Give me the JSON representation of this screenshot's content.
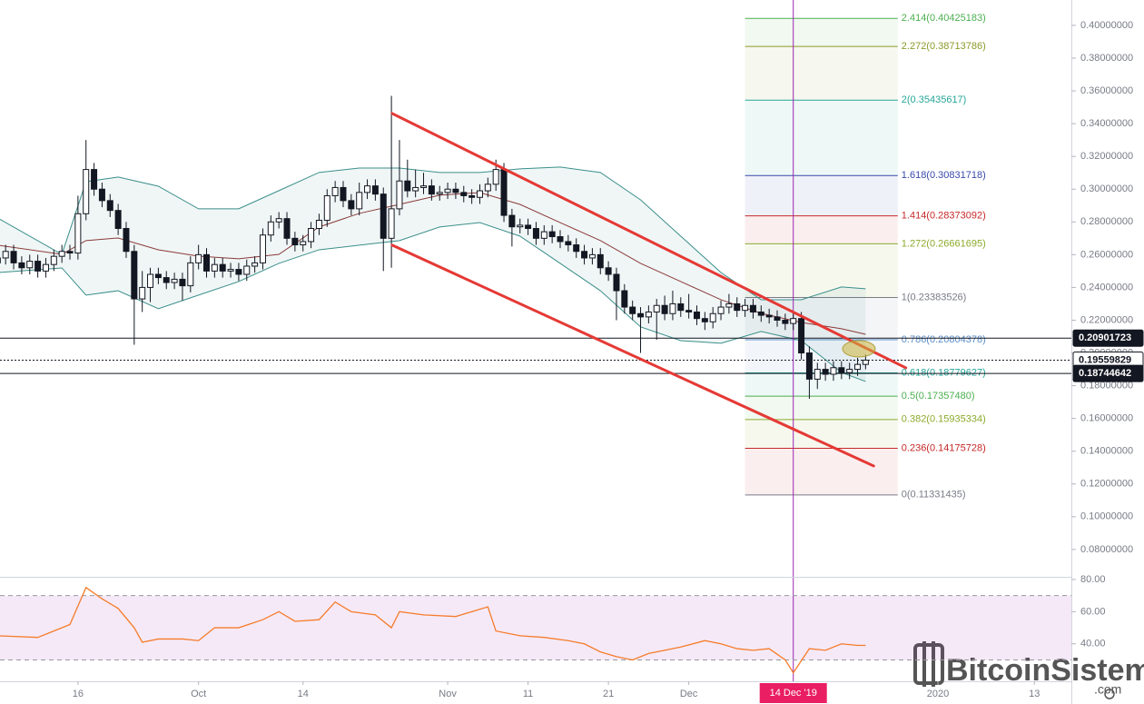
{
  "chart_data": {
    "type": "candlestick",
    "x": [
      5,
      6,
      7,
      8,
      9,
      10,
      11,
      12,
      13,
      14,
      15,
      16,
      17,
      18,
      19,
      20,
      21,
      22,
      23,
      24,
      25,
      26,
      27,
      28,
      29,
      30,
      31,
      32,
      33,
      34,
      35,
      36,
      37,
      38,
      39,
      40,
      41,
      42,
      43,
      44,
      45,
      46,
      47,
      48,
      49,
      50,
      51,
      52,
      53,
      54,
      55,
      56,
      57,
      58,
      59,
      60,
      61,
      62,
      63,
      64,
      65,
      66,
      67,
      68,
      69,
      70,
      71,
      72,
      73,
      74,
      75,
      76,
      77,
      78,
      79,
      80,
      81,
      82,
      83,
      84,
      85,
      86,
      87,
      88,
      89,
      90,
      91,
      92,
      93,
      94,
      95,
      96,
      97,
      98,
      99,
      100,
      101,
      102,
      103,
      104,
      105,
      106,
      107,
      108,
      109,
      110,
      111,
      112,
      113
    ],
    "open": [
      0.255,
      0.258,
      0.262,
      0.255,
      0.252,
      0.256,
      0.25,
      0.254,
      0.259,
      0.262,
      0.261,
      0.285,
      0.312,
      0.3,
      0.293,
      0.287,
      0.276,
      0.262,
      0.233,
      0.24,
      0.248,
      0.246,
      0.243,
      0.245,
      0.241,
      0.255,
      0.26,
      0.25,
      0.254,
      0.25,
      0.251,
      0.248,
      0.253,
      0.255,
      0.272,
      0.28,
      0.282,
      0.27,
      0.266,
      0.268,
      0.276,
      0.281,
      0.296,
      0.301,
      0.293,
      0.288,
      0.298,
      0.302,
      0.297,
      0.27,
      0.288,
      0.305,
      0.299,
      0.301,
      0.302,
      0.297,
      0.298,
      0.3,
      0.298,
      0.296,
      0.295,
      0.299,
      0.303,
      0.312,
      0.284,
      0.277,
      0.278,
      0.276,
      0.27,
      0.274,
      0.271,
      0.268,
      0.266,
      0.262,
      0.258,
      0.26,
      0.252,
      0.248,
      0.238,
      0.228,
      0.224,
      0.222,
      0.225,
      0.229,
      0.224,
      0.23,
      0.226,
      0.225,
      0.221,
      0.219,
      0.224,
      0.228,
      0.23,
      0.226,
      0.229,
      0.225,
      0.223,
      0.222,
      0.22,
      0.218,
      0.221,
      0.2,
      0.184,
      0.19,
      0.187,
      0.191,
      0.188,
      0.19,
      0.193
    ],
    "high": [
      0.262,
      0.266,
      0.266,
      0.259,
      0.26,
      0.26,
      0.258,
      0.263,
      0.266,
      0.266,
      0.296,
      0.33,
      0.316,
      0.304,
      0.297,
      0.291,
      0.28,
      0.266,
      0.25,
      0.252,
      0.252,
      0.25,
      0.249,
      0.249,
      0.259,
      0.266,
      0.264,
      0.258,
      0.258,
      0.255,
      0.255,
      0.257,
      0.259,
      0.276,
      0.284,
      0.286,
      0.286,
      0.274,
      0.272,
      0.28,
      0.285,
      0.3,
      0.305,
      0.305,
      0.297,
      0.304,
      0.306,
      0.306,
      0.301,
      0.357,
      0.33,
      0.318,
      0.312,
      0.31,
      0.306,
      0.302,
      0.304,
      0.304,
      0.302,
      0.3,
      0.303,
      0.307,
      0.318,
      0.316,
      0.288,
      0.282,
      0.282,
      0.28,
      0.278,
      0.278,
      0.275,
      0.272,
      0.27,
      0.266,
      0.264,
      0.264,
      0.256,
      0.252,
      0.242,
      0.232,
      0.228,
      0.229,
      0.233,
      0.235,
      0.238,
      0.234,
      0.236,
      0.229,
      0.225,
      0.228,
      0.232,
      0.236,
      0.234,
      0.233,
      0.233,
      0.229,
      0.227,
      0.226,
      0.224,
      0.225,
      0.225,
      0.204,
      0.194,
      0.194,
      0.195,
      0.195,
      0.194,
      0.197,
      0.199
    ],
    "low": [
      0.251,
      0.254,
      0.251,
      0.248,
      0.248,
      0.246,
      0.246,
      0.25,
      0.255,
      0.257,
      0.257,
      0.281,
      0.296,
      0.289,
      0.283,
      0.272,
      0.258,
      0.205,
      0.225,
      0.231,
      0.242,
      0.239,
      0.239,
      0.232,
      0.237,
      0.251,
      0.246,
      0.246,
      0.246,
      0.246,
      0.244,
      0.244,
      0.249,
      0.251,
      0.268,
      0.276,
      0.266,
      0.262,
      0.262,
      0.264,
      0.272,
      0.277,
      0.292,
      0.289,
      0.284,
      0.284,
      0.294,
      0.293,
      0.25,
      0.252,
      0.284,
      0.295,
      0.295,
      0.297,
      0.293,
      0.293,
      0.294,
      0.294,
      0.292,
      0.291,
      0.291,
      0.295,
      0.299,
      0.28,
      0.265,
      0.273,
      0.272,
      0.266,
      0.266,
      0.267,
      0.264,
      0.262,
      0.258,
      0.254,
      0.254,
      0.248,
      0.244,
      0.22,
      0.224,
      0.22,
      0.2,
      0.218,
      0.208,
      0.22,
      0.22,
      0.222,
      0.221,
      0.217,
      0.214,
      0.215,
      0.22,
      0.224,
      0.222,
      0.222,
      0.221,
      0.219,
      0.218,
      0.216,
      0.214,
      0.214,
      0.196,
      0.172,
      0.178,
      0.183,
      0.183,
      0.184,
      0.184,
      0.186,
      0.19
    ],
    "close": [
      0.258,
      0.262,
      0.255,
      0.252,
      0.256,
      0.25,
      0.254,
      0.259,
      0.262,
      0.261,
      0.285,
      0.312,
      0.3,
      0.293,
      0.287,
      0.276,
      0.262,
      0.233,
      0.24,
      0.248,
      0.246,
      0.243,
      0.245,
      0.241,
      0.255,
      0.26,
      0.25,
      0.254,
      0.25,
      0.251,
      0.248,
      0.253,
      0.255,
      0.272,
      0.28,
      0.282,
      0.27,
      0.266,
      0.268,
      0.276,
      0.281,
      0.296,
      0.301,
      0.293,
      0.288,
      0.298,
      0.302,
      0.297,
      0.27,
      0.288,
      0.305,
      0.299,
      0.301,
      0.302,
      0.297,
      0.298,
      0.3,
      0.298,
      0.296,
      0.295,
      0.299,
      0.303,
      0.312,
      0.284,
      0.277,
      0.278,
      0.276,
      0.27,
      0.274,
      0.271,
      0.268,
      0.266,
      0.262,
      0.258,
      0.26,
      0.252,
      0.248,
      0.238,
      0.228,
      0.224,
      0.222,
      0.225,
      0.229,
      0.224,
      0.23,
      0.226,
      0.225,
      0.221,
      0.219,
      0.224,
      0.228,
      0.23,
      0.226,
      0.229,
      0.225,
      0.223,
      0.222,
      0.22,
      0.218,
      0.221,
      0.2,
      0.184,
      0.19,
      0.187,
      0.191,
      0.188,
      0.19,
      0.193,
      0.1956
    ],
    "up_color": "#ffffff",
    "down_color": "#131722",
    "xlim": [
      5.3,
      138.6
    ],
    "ylim": [
      0.0633,
      0.4155
    ],
    "xticks": [
      {
        "value": 15,
        "label": "16"
      },
      {
        "value": 30,
        "label": "Oct"
      },
      {
        "value": 43,
        "label": "14"
      },
      {
        "value": 61,
        "label": "Nov"
      },
      {
        "value": 71,
        "label": "11"
      },
      {
        "value": 81,
        "label": "21"
      },
      {
        "value": 91,
        "label": "Dec"
      },
      {
        "value": 122,
        "label": "2020"
      },
      {
        "value": 134,
        "label": "13"
      }
    ],
    "yticks": [
      {
        "value": 0.08,
        "label": "0.08000000"
      },
      {
        "value": 0.1,
        "label": "0.10000000"
      },
      {
        "value": 0.12,
        "label": "0.12000000"
      },
      {
        "value": 0.14,
        "label": "0.14000000"
      },
      {
        "value": 0.16,
        "label": "0.16000000"
      },
      {
        "value": 0.18,
        "label": "0.18000000"
      },
      {
        "value": 0.2,
        "label": "0.20000000"
      },
      {
        "value": 0.22,
        "label": "0.22000000"
      },
      {
        "value": 0.24,
        "label": "0.24000000"
      },
      {
        "value": 0.26,
        "label": "0.26000000"
      },
      {
        "value": 0.28,
        "label": "0.28000000"
      },
      {
        "value": 0.3,
        "label": "0.30000000"
      },
      {
        "value": 0.32,
        "label": "0.32000000"
      },
      {
        "value": 0.34,
        "label": "0.34000000"
      },
      {
        "value": 0.36,
        "label": "0.36000000"
      },
      {
        "value": 0.38,
        "label": "0.38000000"
      },
      {
        "value": 0.4,
        "label": "0.40000000"
      }
    ],
    "bollinger": {
      "x": [
        5,
        13,
        16,
        20,
        25,
        30,
        35,
        40,
        45,
        50,
        55,
        60,
        65,
        70,
        75,
        80,
        85,
        90,
        95,
        100,
        105,
        110,
        113
      ],
      "upper": [
        0.2824,
        0.2602,
        0.3046,
        0.3074,
        0.3018,
        0.288,
        0.288,
        0.2991,
        0.3102,
        0.3129,
        0.3129,
        0.3102,
        0.3102,
        0.3124,
        0.3135,
        0.3102,
        0.2935,
        0.2713,
        0.2491,
        0.2325,
        0.2325,
        0.2403,
        0.2392
      ],
      "middle": [
        0.2658,
        0.2602,
        0.2686,
        0.2702,
        0.263,
        0.2591,
        0.2575,
        0.2602,
        0.2769,
        0.2852,
        0.2907,
        0.2963,
        0.2979,
        0.2907,
        0.2796,
        0.2686,
        0.2547,
        0.2436,
        0.2325,
        0.2242,
        0.2186,
        0.2148,
        0.2114
      ],
      "lower": [
        0.2491,
        0.2519,
        0.2353,
        0.238,
        0.227,
        0.2353,
        0.2436,
        0.2547,
        0.263,
        0.2658,
        0.2686,
        0.2769,
        0.2796,
        0.2713,
        0.2547,
        0.238,
        0.2159,
        0.2075,
        0.2059,
        0.2131,
        0.2075,
        0.1881,
        0.1826
      ],
      "band_color": "#3a8f8a",
      "middle_color": "#8b3a3a"
    },
    "trendlines": [
      {
        "x": [
          54.1,
          118.0
        ],
        "y": [
          0.3462,
          0.1909
        ],
        "color": "#e53935"
      },
      {
        "x": [
          54.1,
          114.0
        ],
        "y": [
          0.2658,
          0.131
        ],
        "color": "#e53935"
      }
    ],
    "fib_x": [
      98,
      117
    ],
    "fib_levels": [
      {
        "price": 0.40425183,
        "label": "2.414(0.40425183)",
        "color": "#4caf50"
      },
      {
        "price": 0.38713786,
        "label": "2.272(0.38713786)",
        "color": "#8c9a2a"
      },
      {
        "price": 0.35435617,
        "label": "2(0.35435617)",
        "color": "#26a69a"
      },
      {
        "price": 0.30831718,
        "label": "1.618(0.30831718)",
        "color": "#3949ab"
      },
      {
        "price": 0.28373092,
        "label": "1.414(0.28373092)",
        "color": "#c62828"
      },
      {
        "price": 0.26661695,
        "label": "1.272(0.26661695)",
        "color": "#8bab2c"
      },
      {
        "price": 0.23383526,
        "label": "1(0.23383526)",
        "color": "#787b86"
      },
      {
        "price": 0.20804378,
        "label": "0.786(0.20804378)",
        "color": "#5b8fc7"
      },
      {
        "price": 0.18779627,
        "label": "0.618(0.18779627)",
        "color": "#26a69a"
      },
      {
        "price": 0.1735748,
        "label": "0.5(0.17357480)",
        "color": "#4caf50"
      },
      {
        "price": 0.15935334,
        "label": "0.382(0.15935334)",
        "color": "#8bab2c"
      },
      {
        "price": 0.14175728,
        "label": "0.236(0.14175728)",
        "color": "#c62828"
      },
      {
        "price": 0.11331435,
        "label": "0(0.11331435)",
        "color": "#787b86"
      }
    ],
    "price_lines": [
      {
        "price": 0.20901723,
        "label": "0.20901723",
        "style": "solid"
      },
      {
        "price": 0.19559829,
        "label": "0.19559829",
        "style": "dotted"
      },
      {
        "price": 0.18744642,
        "label": "0.18744642",
        "style": "solid"
      }
    ],
    "cursor": {
      "x": 104,
      "label": "14 Dec '19",
      "color": "#9c27b0"
    },
    "rsi": {
      "x": [
        5,
        10,
        12,
        14,
        16,
        18,
        20,
        22,
        23,
        25,
        28,
        30,
        32,
        35,
        38,
        40,
        42,
        45,
        47,
        49,
        52,
        54,
        55,
        58,
        62,
        64,
        66,
        67,
        70,
        73,
        76,
        78,
        80,
        82,
        84,
        86,
        88,
        90,
        93,
        95,
        97,
        99,
        101,
        103,
        104,
        106,
        108,
        110,
        112,
        113
      ],
      "values": [
        45,
        44,
        48,
        52,
        75,
        68,
        62,
        50,
        41,
        43,
        43,
        42,
        50,
        50,
        55,
        60,
        54,
        55,
        66,
        60,
        58,
        50,
        60,
        58,
        57,
        60,
        63,
        48,
        45,
        44,
        42,
        40,
        35,
        32,
        30,
        34,
        36,
        38,
        42,
        40,
        37,
        36,
        37,
        30,
        22,
        37,
        36,
        40,
        39,
        39
      ],
      "color": "#f57c2b",
      "ylim": [
        16.7,
        81.1
      ],
      "band": [
        30,
        70
      ],
      "yticks": [
        {
          "value": 40,
          "label": "40.00"
        },
        {
          "value": 60,
          "label": "60.00"
        },
        {
          "value": 80,
          "label": "80.00"
        }
      ]
    },
    "watermark": "BitcoinSistemi",
    "watermark_suffix": ".com"
  }
}
